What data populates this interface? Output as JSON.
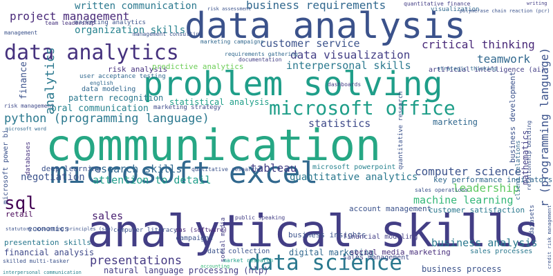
{
  "words": [
    {
      "text": "communication",
      "color": "#26a784",
      "rot": 0
    },
    {
      "text": "analytical skills",
      "color": "#433e85",
      "rot": 0
    },
    {
      "text": "data analysis",
      "color": "#3b528b",
      "rot": 0
    },
    {
      "text": "problem solving",
      "color": "#1f9e89",
      "rot": 0
    },
    {
      "text": "microsoft excel",
      "color": "#31688e",
      "rot": 0
    },
    {
      "text": "data science",
      "color": "#2a788e",
      "rot": 0
    },
    {
      "text": "data analytics",
      "color": "#46327e",
      "rot": 0
    },
    {
      "text": "microsoft office",
      "color": "#1f9e89",
      "rot": 0
    },
    {
      "text": "python (programming language)",
      "color": "#2a788e",
      "rot": 0
    },
    {
      "text": "business requirements",
      "color": "#31688e",
      "rot": 0
    },
    {
      "text": "project management",
      "color": "#482878",
      "rot": 0
    },
    {
      "text": "customer service",
      "color": "#3b528b",
      "rot": 0
    },
    {
      "text": "data visualization",
      "color": "#433e85",
      "rot": 0
    },
    {
      "text": "critical thinking",
      "color": "#482878",
      "rot": 0
    },
    {
      "text": "teamwork",
      "color": "#31688e",
      "rot": 0
    },
    {
      "text": "interpersonal skills",
      "color": "#2a788e",
      "rot": 0
    },
    {
      "text": "organization skills",
      "color": "#26828e",
      "rot": 0
    },
    {
      "text": "written communication",
      "color": "#2a788e",
      "rot": 0
    },
    {
      "text": "sql",
      "color": "#440154",
      "rot": 0
    },
    {
      "text": "statistics",
      "color": "#3e4989",
      "rot": 0
    },
    {
      "text": "tableau",
      "color": "#433e85",
      "rot": 0
    },
    {
      "text": "research skills",
      "color": "#31688e",
      "rot": 0
    },
    {
      "text": "attention to detail",
      "color": "#1f9e89",
      "rot": 0
    },
    {
      "text": "computer science",
      "color": "#3b528b",
      "rot": 0
    },
    {
      "text": "leadership",
      "color": "#5ec962",
      "rot": 0
    },
    {
      "text": "machine learning",
      "color": "#35b779",
      "rot": 0
    },
    {
      "text": "quantitative analytics",
      "color": "#2a788e",
      "rot": 0
    },
    {
      "text": "negotiation",
      "color": "#3b528b",
      "rot": 0
    },
    {
      "text": "presentations",
      "color": "#443983",
      "rot": 0
    },
    {
      "text": "sales",
      "color": "#481f70",
      "rot": 0
    },
    {
      "text": "business analysis",
      "color": "#2a788e",
      "rot": 0
    },
    {
      "text": "statistical analysis",
      "color": "#1f9e89",
      "rot": 0
    },
    {
      "text": "oral communication",
      "color": "#26828e",
      "rot": 0
    },
    {
      "text": "marketing",
      "color": "#31688e",
      "rot": 0
    },
    {
      "text": "pattern recognition",
      "color": "#2a788e",
      "rot": 0
    },
    {
      "text": "risk analysis",
      "color": "#46327e",
      "rot": 0
    },
    {
      "text": "predictive analytics",
      "color": "#6ece58",
      "rot": 0
    },
    {
      "text": "data modeling",
      "color": "#31688e",
      "rot": 0
    },
    {
      "text": "deep learning",
      "color": "#3b528b",
      "rot": 0
    },
    {
      "text": "key performance indicators",
      "color": "#31688e",
      "rot": 0
    },
    {
      "text": "account management",
      "color": "#3b528b",
      "rot": 0
    },
    {
      "text": "customer satisfaction",
      "color": "#2a788e",
      "rot": 0
    },
    {
      "text": "business insights",
      "color": "#3b528b",
      "rot": 0
    },
    {
      "text": "financial modeling",
      "color": "#433e85",
      "rot": 0
    },
    {
      "text": "sales management",
      "color": "#3e4989",
      "rot": 0
    },
    {
      "text": "presentation skills",
      "color": "#2a788e",
      "rot": 0
    },
    {
      "text": "financial analysis",
      "color": "#3e4989",
      "rot": 0
    },
    {
      "text": "natural language processing (nlp)",
      "color": "#433e85",
      "rot": 0
    },
    {
      "text": "data collection",
      "color": "#3b528b",
      "rot": 0
    },
    {
      "text": "digital marketing",
      "color": "#31688e",
      "rot": 0
    },
    {
      "text": "social media marketing",
      "color": "#472d7b",
      "rot": 0
    },
    {
      "text": "sales processes",
      "color": "#2a788e",
      "rot": 0
    },
    {
      "text": "business process",
      "color": "#3b528b",
      "rot": 0
    },
    {
      "text": "economics",
      "color": "#3b528b",
      "rot": 0
    },
    {
      "text": "campaigns",
      "color": "#3b528b",
      "rot": 0
    },
    {
      "text": "retail",
      "color": "#440154",
      "rot": 0
    },
    {
      "text": "microsoft powerpoint",
      "color": "#26828e",
      "rot": 0
    },
    {
      "text": "qualitative research",
      "color": "#3b528b",
      "rot": 0
    },
    {
      "text": "marketing strategy",
      "color": "#3e4989",
      "rot": 0
    },
    {
      "text": "requirements gathering",
      "color": "#31688e",
      "rot": 0
    },
    {
      "text": "documentation",
      "color": "#433e85",
      "rot": 0
    },
    {
      "text": "marketing campaigns",
      "color": "#31688e",
      "rot": 0
    },
    {
      "text": "marketing analytics",
      "color": "#3b528b",
      "rot": 0
    },
    {
      "text": "user acceptance testing",
      "color": "#31688e",
      "rot": 0
    },
    {
      "text": "management consulting",
      "color": "#3b528b",
      "rot": 0
    },
    {
      "text": "artificial intelligence (ai)",
      "color": "#433e85",
      "rot": 0
    },
    {
      "text": "strategic thinking",
      "color": "#31688e",
      "rot": 0
    },
    {
      "text": "team leadership",
      "color": "#46327e",
      "rot": 0
    },
    {
      "text": "management",
      "color": "#3b528b",
      "rot": 0
    },
    {
      "text": "english",
      "color": "#31688e",
      "rot": 0
    },
    {
      "text": "risk management",
      "color": "#3e4989",
      "rot": 0
    },
    {
      "text": "public speaking",
      "color": "#433e85",
      "rot": 0
    },
    {
      "text": "sales operations",
      "color": "#3b528b",
      "rot": 0
    },
    {
      "text": "computer literacy",
      "color": "#3b528b",
      "rot": 0
    },
    {
      "text": "sas (software)",
      "color": "#482878",
      "rot": 0
    },
    {
      "text": "quantitative finance",
      "color": "#433e85",
      "rot": 0
    },
    {
      "text": "visualization",
      "color": "#31688e",
      "rot": 0
    },
    {
      "text": "polymerase chain reaction (pcr)",
      "color": "#3b528b",
      "rot": 0
    },
    {
      "text": "dashboards",
      "color": "#433e85",
      "rot": 0
    },
    {
      "text": "statutory accounting principles (sap)",
      "color": "#3b528b",
      "rot": 0
    },
    {
      "text": "market research",
      "color": "#1f9e89",
      "rot": 0
    },
    {
      "text": "skilled multi-tasker",
      "color": "#3b528b",
      "rot": 0
    },
    {
      "text": "interpersonal communication",
      "color": "#26828e",
      "rot": 0
    },
    {
      "text": "microsoft word",
      "color": "#31688e",
      "rot": 0
    },
    {
      "text": "risk assessment",
      "color": "#3b528b",
      "rot": 0
    },
    {
      "text": "accounting",
      "color": "#35b779",
      "rot": 0
    },
    {
      "text": "writing",
      "color": "#433e85",
      "rot": 0
    },
    {
      "text": "analytics",
      "color": "#2a788e",
      "rot": -90
    },
    {
      "text": "finance",
      "color": "#3b528b",
      "rot": -90
    },
    {
      "text": "microsoft power bi",
      "color": "#3b528b",
      "rot": -90
    },
    {
      "text": "databases",
      "color": "#46327e",
      "rot": -90
    },
    {
      "text": "quantitative research",
      "color": "#3b528b",
      "rot": -90
    },
    {
      "text": "business development",
      "color": "#3b528b",
      "rot": -90
    },
    {
      "text": "mathematics",
      "color": "#433e85",
      "rot": -90
    },
    {
      "text": "r (programming language)",
      "color": "#3b528b",
      "rot": -90
    },
    {
      "text": "social media",
      "color": "#433e85",
      "rot": -90
    },
    {
      "text": "client relations",
      "color": "#31688e",
      "rot": -90
    },
    {
      "text": "relationship building",
      "color": "#3b528b",
      "rot": -90
    },
    {
      "text": "datasets",
      "color": "#3b528b",
      "rot": -90
    },
    {
      "text": "credit risk management",
      "color": "#3b528b",
      "rot": -90
    }
  ]
}
